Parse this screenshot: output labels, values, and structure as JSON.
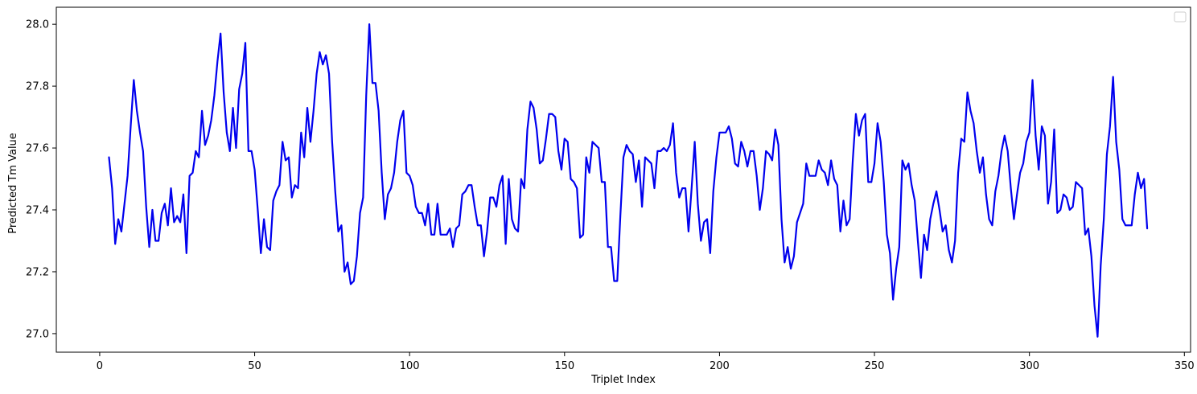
{
  "chart_data": {
    "type": "line",
    "title": "",
    "xlabel": "Triplet Index",
    "ylabel": "Predicted Tm Value",
    "xlim": [
      -14,
      352
    ],
    "ylim": [
      26.94,
      28.055
    ],
    "xticks": [
      0,
      50,
      100,
      150,
      200,
      250,
      300,
      350
    ],
    "yticks": [
      27.0,
      27.2,
      27.4,
      27.6,
      27.8,
      28.0
    ],
    "ytick_labels": [
      "27.0",
      "27.2",
      "27.4",
      "27.6",
      "27.8",
      "28.0"
    ],
    "grid": false,
    "legend": "top-right",
    "line_color": "#0000ee",
    "series": [
      {
        "x_start": 3,
        "x_step": 1,
        "values": [
          27.57,
          27.47,
          27.29,
          27.37,
          27.33,
          27.42,
          27.51,
          27.67,
          27.82,
          27.72,
          27.65,
          27.59,
          27.41,
          27.28,
          27.4,
          27.3,
          27.3,
          27.39,
          27.42,
          27.35,
          27.47,
          27.36,
          27.38,
          27.36,
          27.45,
          27.26,
          27.51,
          27.52,
          27.59,
          27.57,
          27.72,
          27.61,
          27.64,
          27.69,
          27.77,
          27.88,
          27.97,
          27.78,
          27.65,
          27.59,
          27.73,
          27.6,
          27.79,
          27.84,
          27.94,
          27.59,
          27.59,
          27.53,
          27.4,
          27.26,
          27.37,
          27.28,
          27.27,
          27.43,
          27.46,
          27.48,
          27.62,
          27.56,
          27.57,
          27.44,
          27.48,
          27.47,
          27.65,
          27.57,
          27.73,
          27.62,
          27.72,
          27.84,
          27.91,
          27.87,
          27.9,
          27.84,
          27.62,
          27.46,
          27.33,
          27.35,
          27.2,
          27.23,
          27.16,
          27.17,
          27.25,
          27.39,
          27.44,
          27.77,
          28.0,
          27.81,
          27.81,
          27.72,
          27.52,
          27.37,
          27.45,
          27.47,
          27.52,
          27.62,
          27.69,
          27.72,
          27.52,
          27.51,
          27.48,
          27.41,
          27.39,
          27.39,
          27.35,
          27.42,
          27.32,
          27.32,
          27.42,
          27.32,
          27.32,
          27.32,
          27.34,
          27.28,
          27.34,
          27.35,
          27.45,
          27.46,
          27.48,
          27.48,
          27.41,
          27.35,
          27.35,
          27.25,
          27.33,
          27.44,
          27.44,
          27.41,
          27.48,
          27.51,
          27.29,
          27.5,
          27.37,
          27.34,
          27.33,
          27.5,
          27.47,
          27.66,
          27.75,
          27.73,
          27.66,
          27.55,
          27.56,
          27.63,
          27.71,
          27.71,
          27.7,
          27.59,
          27.53,
          27.63,
          27.62,
          27.5,
          27.49,
          27.47,
          27.31,
          27.32,
          27.57,
          27.52,
          27.62,
          27.61,
          27.6,
          27.49,
          27.49,
          27.28,
          27.28,
          27.17,
          27.17,
          27.38,
          27.57,
          27.61,
          27.59,
          27.58,
          27.49,
          27.56,
          27.41,
          27.57,
          27.56,
          27.55,
          27.47,
          27.59,
          27.59,
          27.6,
          27.59,
          27.61,
          27.68,
          27.52,
          27.44,
          27.47,
          27.47,
          27.33,
          27.47,
          27.62,
          27.42,
          27.3,
          27.36,
          27.37,
          27.26,
          27.46,
          27.57,
          27.65,
          27.65,
          27.65,
          27.67,
          27.63,
          27.55,
          27.54,
          27.62,
          27.59,
          27.54,
          27.59,
          27.59,
          27.51,
          27.4,
          27.47,
          27.59,
          27.58,
          27.56,
          27.66,
          27.61,
          27.37,
          27.23,
          27.28,
          27.21,
          27.25,
          27.36,
          27.39,
          27.42,
          27.55,
          27.51,
          27.51,
          27.51,
          27.56,
          27.53,
          27.52,
          27.48,
          27.56,
          27.5,
          27.48,
          27.33,
          27.43,
          27.35,
          27.37,
          27.56,
          27.71,
          27.64,
          27.69,
          27.71,
          27.49,
          27.49,
          27.55,
          27.68,
          27.62,
          27.49,
          27.32,
          27.26,
          27.11,
          27.21,
          27.28,
          27.56,
          27.53,
          27.55,
          27.48,
          27.43,
          27.3,
          27.18,
          27.32,
          27.27,
          27.37,
          27.42,
          27.46,
          27.4,
          27.33,
          27.35,
          27.27,
          27.23,
          27.3,
          27.52,
          27.63,
          27.62,
          27.78,
          27.72,
          27.68,
          27.59,
          27.52,
          27.57,
          27.45,
          27.37,
          27.35,
          27.46,
          27.51,
          27.59,
          27.64,
          27.59,
          27.47,
          27.37,
          27.45,
          27.52,
          27.55,
          27.62,
          27.65,
          27.82,
          27.64,
          27.53,
          27.67,
          27.64,
          27.42,
          27.49,
          27.66,
          27.39,
          27.4,
          27.45,
          27.44,
          27.4,
          27.41,
          27.49,
          27.48,
          27.47,
          27.32,
          27.34,
          27.25,
          27.09,
          26.99,
          27.22,
          27.37,
          27.58,
          27.67,
          27.83,
          27.62,
          27.53,
          27.37,
          27.35,
          27.35,
          27.35,
          27.45,
          27.52,
          27.47,
          27.5,
          27.34
        ]
      }
    ]
  }
}
